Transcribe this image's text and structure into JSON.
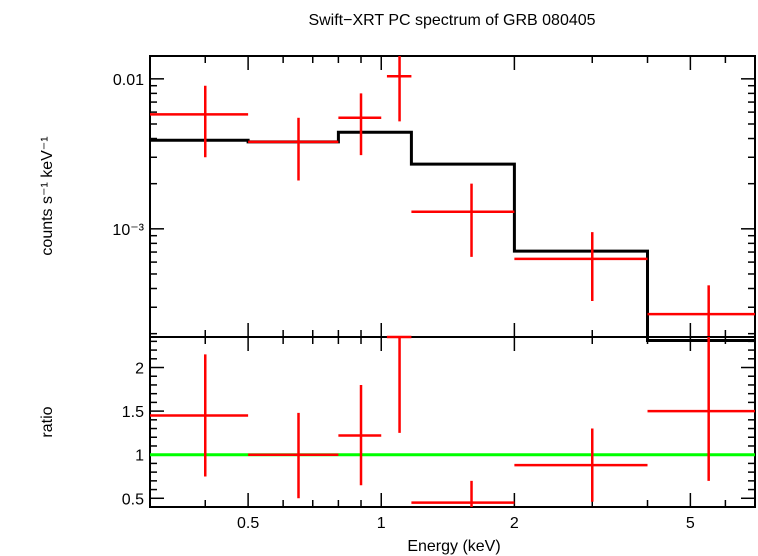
{
  "chart_data": {
    "type": "scatter",
    "title": "Swift−XRT PC spectrum of GRB 080405",
    "xlabel": "Energy (keV)",
    "x_scale": "log",
    "xlim": [
      0.3,
      7.0
    ],
    "x_tick_labels": [
      {
        "value": 0.5,
        "label": "0.5"
      },
      {
        "value": 1,
        "label": "1"
      },
      {
        "value": 2,
        "label": "2"
      },
      {
        "value": 5,
        "label": "5"
      }
    ],
    "panels": [
      {
        "name": "spectrum",
        "ylabel": "counts s⁻¹ keV⁻¹",
        "y_scale": "log",
        "ylim": [
          0.00019,
          0.0142
        ],
        "y_tick_labels": [
          {
            "value": 0.01,
            "label": "0.01"
          },
          {
            "value": 0.001,
            "label": "10⁻³"
          }
        ],
        "data": [
          {
            "x": 0.4,
            "x_lo": 0.3,
            "x_hi": 0.5,
            "y": 0.0058,
            "y_lo": 0.003,
            "y_hi": 0.009
          },
          {
            "x": 0.65,
            "x_lo": 0.5,
            "x_hi": 0.8,
            "y": 0.0038,
            "y_lo": 0.0021,
            "y_hi": 0.0055
          },
          {
            "x": 0.9,
            "x_lo": 0.8,
            "x_hi": 1.0,
            "y": 0.0055,
            "y_lo": 0.0031,
            "y_hi": 0.008
          },
          {
            "x": 1.1,
            "x_lo": 1.03,
            "x_hi": 1.17,
            "y": 0.0104,
            "y_lo": 0.0052,
            "y_hi": 0.015
          },
          {
            "x": 1.6,
            "x_lo": 1.17,
            "x_hi": 2.0,
            "y": 0.0013,
            "y_lo": 0.00065,
            "y_hi": 0.002
          },
          {
            "x": 3.0,
            "x_lo": 2.0,
            "x_hi": 4.0,
            "y": 0.00063,
            "y_lo": 0.00033,
            "y_hi": 0.00095
          },
          {
            "x": 5.5,
            "x_lo": 4.0,
            "x_hi": 7.0,
            "y": 0.00027,
            "y_lo": 0.00019,
            "y_hi": 0.00042
          }
        ],
        "model": [
          {
            "x_lo": 0.3,
            "x_hi": 0.5,
            "y": 0.0039
          },
          {
            "x_lo": 0.5,
            "x_hi": 0.8,
            "y": 0.0038
          },
          {
            "x_lo": 0.8,
            "x_hi": 1.17,
            "y": 0.0044
          },
          {
            "x_lo": 1.17,
            "x_hi": 2.0,
            "y": 0.0027
          },
          {
            "x_lo": 2.0,
            "x_hi": 4.0,
            "y": 0.00071
          },
          {
            "x_lo": 4.0,
            "x_hi": 7.0,
            "y": 0.00018
          }
        ]
      },
      {
        "name": "ratio",
        "ylabel": "ratio",
        "y_scale": "linear",
        "ylim": [
          0.4,
          2.35
        ],
        "y_tick_labels": [
          {
            "value": 0.5,
            "label": "0.5"
          },
          {
            "value": 1,
            "label": "1"
          },
          {
            "value": 1.5,
            "label": "1.5"
          },
          {
            "value": 2,
            "label": "2"
          }
        ],
        "reference_line": 1,
        "data": [
          {
            "x": 0.4,
            "x_lo": 0.3,
            "x_hi": 0.5,
            "y": 1.45,
            "y_lo": 0.75,
            "y_hi": 2.15
          },
          {
            "x": 0.65,
            "x_lo": 0.5,
            "x_hi": 0.8,
            "y": 1.0,
            "y_lo": 0.5,
            "y_hi": 1.48
          },
          {
            "x": 0.9,
            "x_lo": 0.8,
            "x_hi": 1.0,
            "y": 1.22,
            "y_lo": 0.65,
            "y_hi": 1.8
          },
          {
            "x": 1.1,
            "x_lo": 1.03,
            "x_hi": 1.17,
            "y": 2.35,
            "y_lo": 1.25,
            "y_hi": 2.35
          },
          {
            "x": 1.6,
            "x_lo": 1.17,
            "x_hi": 2.0,
            "y": 0.45,
            "y_lo": 0.4,
            "y_hi": 0.7
          },
          {
            "x": 3.0,
            "x_lo": 2.0,
            "x_hi": 4.0,
            "y": 0.88,
            "y_lo": 0.46,
            "y_hi": 1.3
          },
          {
            "x": 5.5,
            "x_lo": 4.0,
            "x_hi": 7.0,
            "y": 1.5,
            "y_lo": 0.7,
            "y_hi": 2.35
          }
        ]
      }
    ],
    "colors": {
      "data": "#ff0000",
      "model": "#000000",
      "reference": "#00ff00"
    }
  }
}
